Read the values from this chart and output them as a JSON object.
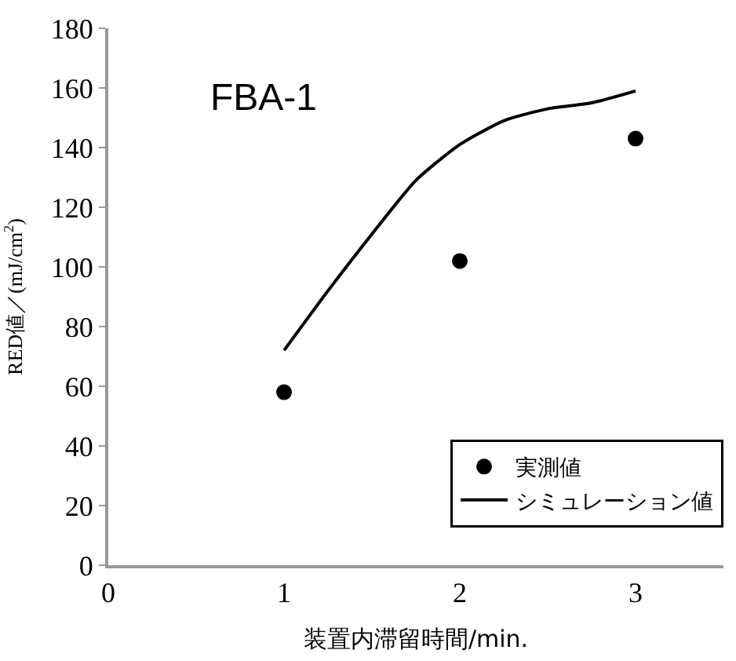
{
  "chart_data": {
    "type": "scatter",
    "annotations": [
      "FBA-1"
    ],
    "xlabel": "装置内滞留時間/min.",
    "ylabel": "RED値／(mJ/cm$^{2}$)",
    "xlim": [
      0,
      3.5
    ],
    "xticks": [
      0,
      1,
      2,
      3
    ],
    "ylim": [
      0,
      180
    ],
    "yticks": [
      0,
      20,
      40,
      60,
      80,
      100,
      120,
      140,
      160,
      180
    ],
    "series": [
      {
        "name": "実測値",
        "color": "#000000",
        "marker": "circle",
        "x": [
          1,
          2,
          3
        ],
        "values": [
          58,
          102,
          143
        ]
      },
      {
        "name": "シミュレーション値",
        "type": "line",
        "marker": "none",
        "color": "#000000",
        "x": [
          1,
          1.25,
          1.5,
          1.75,
          2,
          2.25,
          2.5,
          2.75,
          3
        ],
        "values": [
          72,
          92,
          111,
          129,
          141,
          149,
          153,
          155,
          159
        ]
      }
    ],
    "line_style": "solid",
    "legend": "bottom right"
  }
}
